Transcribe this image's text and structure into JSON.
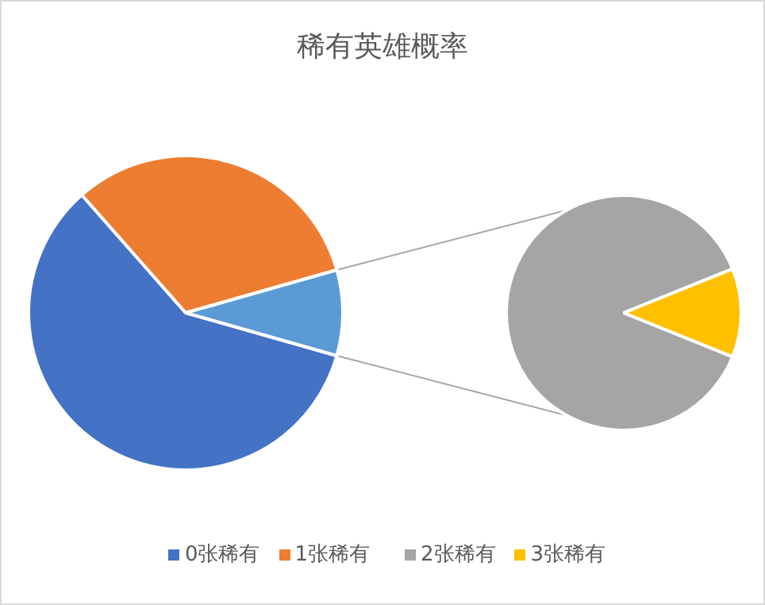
{
  "chart_data": [
    {
      "type": "pie",
      "title": "稀有英雄概率",
      "categories": [
        "0张稀有",
        "1张稀有",
        null
      ],
      "values": [
        59.1,
        32.1,
        8.8
      ],
      "colors": [
        "#4472c4",
        "#ed7d31",
        "#5b9bd5"
      ],
      "legend": "bottom"
    },
    {
      "type": "pie",
      "categories": [
        "2张稀有",
        "3张稀有"
      ],
      "values": [
        87.8,
        12.2
      ],
      "colors": [
        "#a5a5a5",
        "#ffc000"
      ],
      "legend": "bottom"
    }
  ]
}
